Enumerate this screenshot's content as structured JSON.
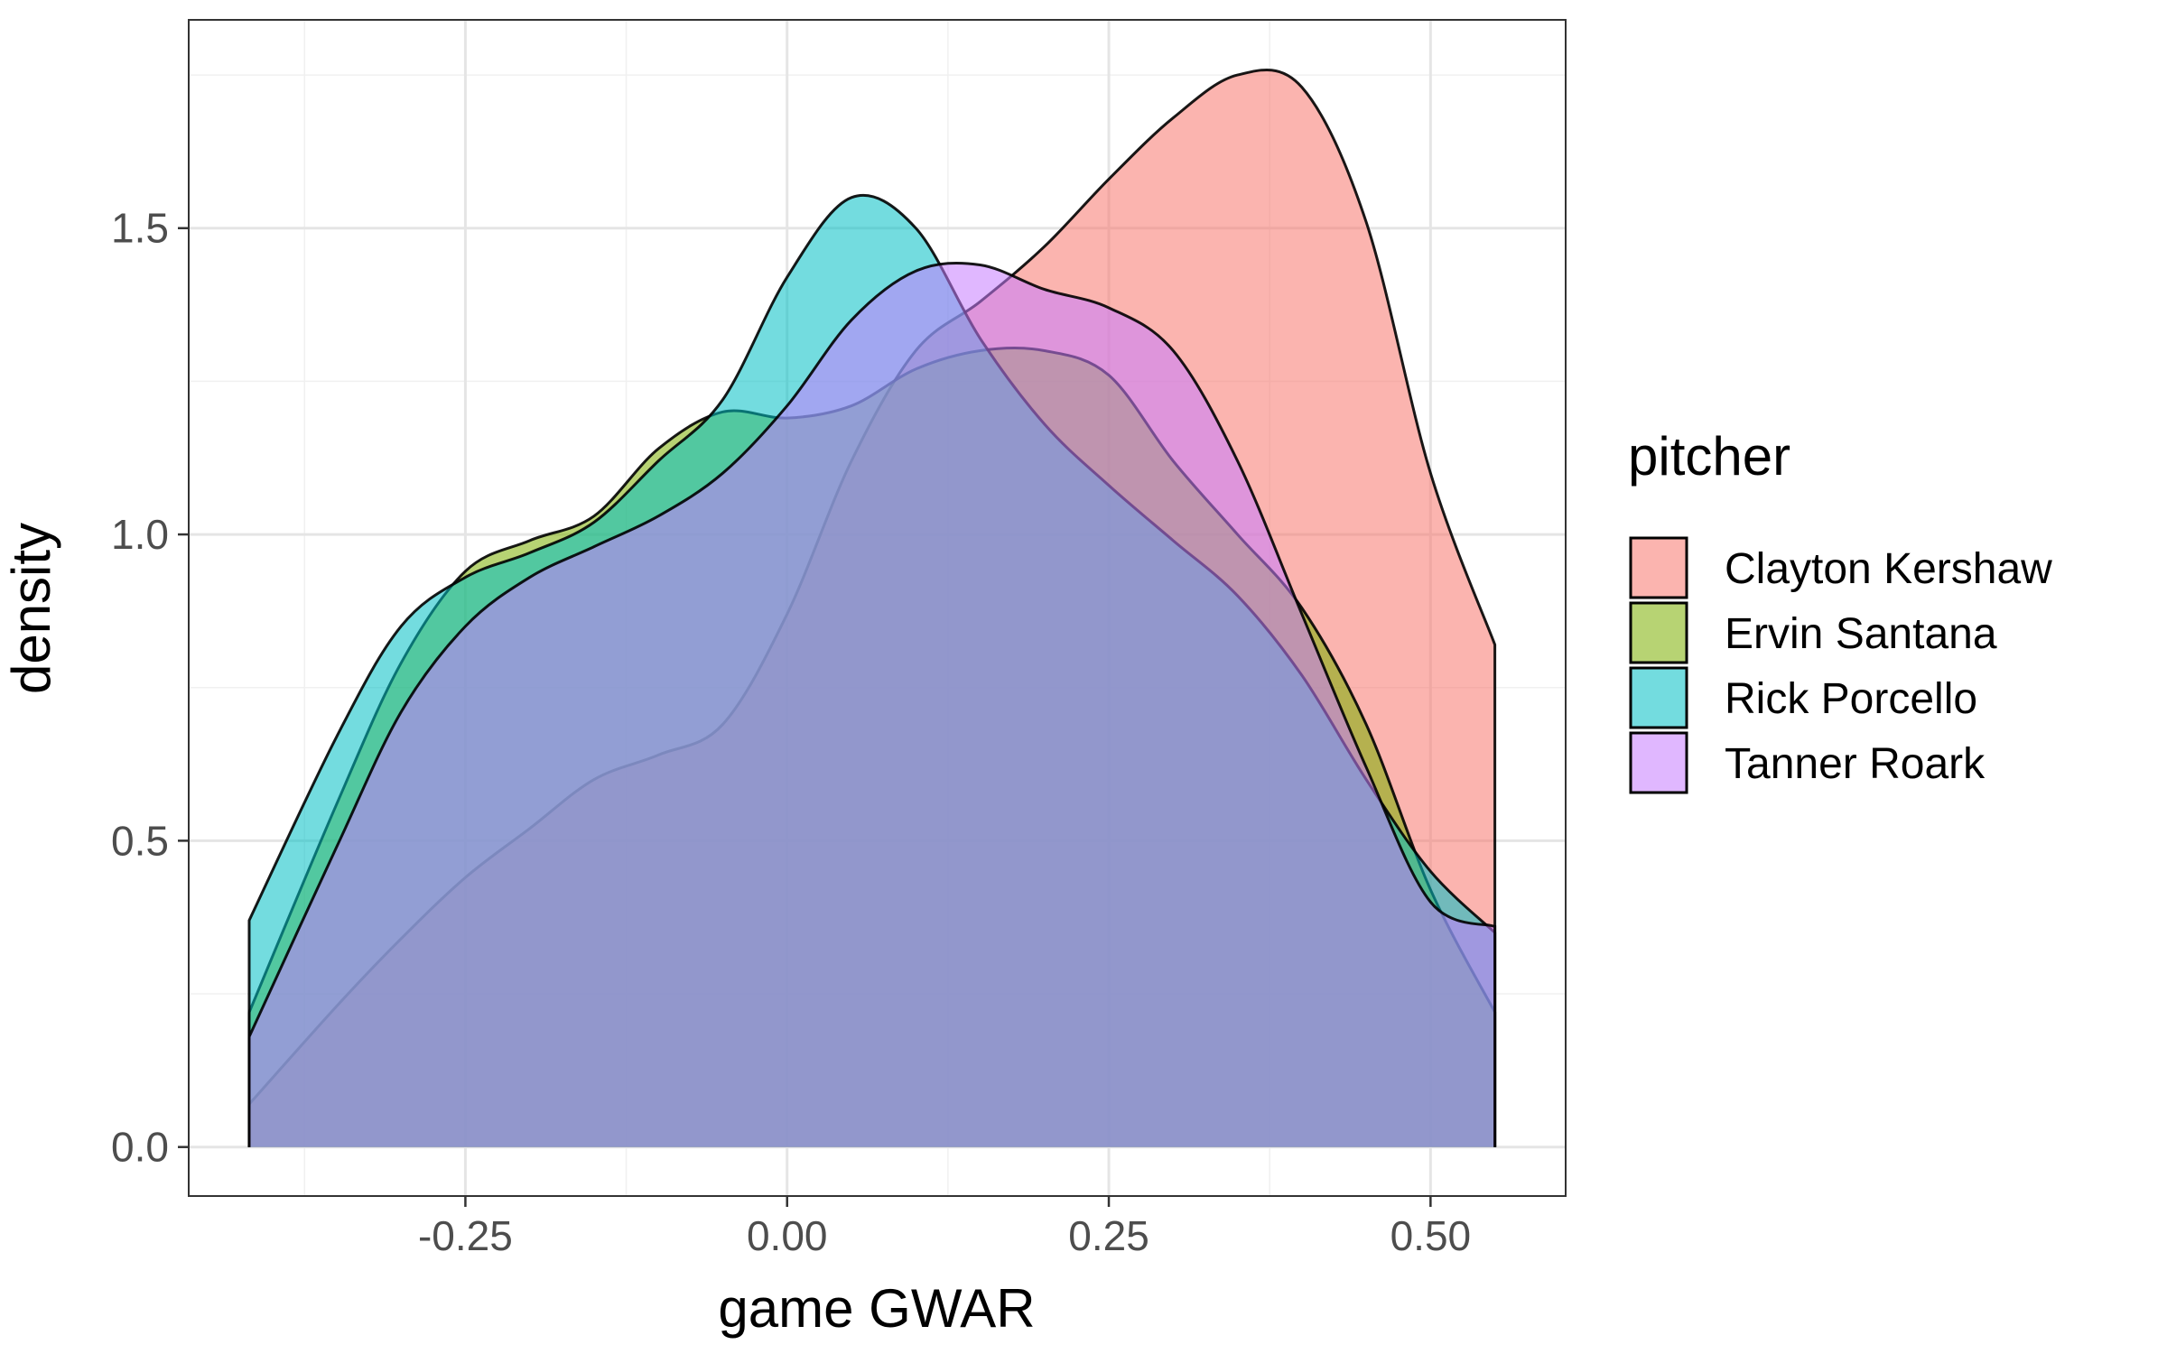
{
  "chart_data": {
    "type": "area",
    "xlabel": "game GWAR",
    "ylabel": "density",
    "xlim": [
      -0.465,
      0.605
    ],
    "ylim": [
      -0.08,
      1.84
    ],
    "x_ticks": [
      -0.25,
      0.0,
      0.25,
      0.5
    ],
    "x_tick_labels": [
      "-0.25",
      "0.00",
      "0.25",
      "0.50"
    ],
    "y_ticks": [
      0.0,
      0.5,
      1.0,
      1.5
    ],
    "y_tick_labels": [
      "0.0",
      "0.5",
      "1.0",
      "1.5"
    ],
    "grid": true,
    "legend": {
      "title": "pitcher",
      "position": "right"
    },
    "x": [
      -0.418,
      -0.35,
      -0.3,
      -0.25,
      -0.2,
      -0.15,
      -0.1,
      -0.05,
      0.0,
      0.05,
      0.1,
      0.15,
      0.2,
      0.25,
      0.3,
      0.35,
      0.4,
      0.45,
      0.5,
      0.55
    ],
    "series": [
      {
        "name": "Clayton Kershaw",
        "color": "#F8766D",
        "values": [
          0.07,
          0.23,
          0.34,
          0.44,
          0.52,
          0.6,
          0.64,
          0.69,
          0.87,
          1.12,
          1.3,
          1.38,
          1.47,
          1.58,
          1.68,
          1.75,
          1.73,
          1.51,
          1.1,
          0.82
        ]
      },
      {
        "name": "Ervin Santana",
        "color": "#7CAE00",
        "values": [
          0.22,
          0.56,
          0.79,
          0.94,
          0.99,
          1.03,
          1.14,
          1.2,
          1.19,
          1.21,
          1.27,
          1.3,
          1.3,
          1.26,
          1.12,
          1.0,
          0.88,
          0.69,
          0.42,
          0.22
        ]
      },
      {
        "name": "Rick Porcello",
        "color": "#00BFC4",
        "values": [
          0.37,
          0.67,
          0.85,
          0.93,
          0.97,
          1.02,
          1.12,
          1.22,
          1.42,
          1.55,
          1.5,
          1.32,
          1.18,
          1.08,
          0.99,
          0.9,
          0.77,
          0.6,
          0.45,
          0.35
        ]
      },
      {
        "name": "Tanner Roark",
        "color": "#C77CFF",
        "values": [
          0.18,
          0.49,
          0.71,
          0.85,
          0.93,
          0.98,
          1.03,
          1.1,
          1.21,
          1.35,
          1.43,
          1.44,
          1.4,
          1.37,
          1.3,
          1.12,
          0.87,
          0.62,
          0.4,
          0.36
        ]
      }
    ]
  }
}
